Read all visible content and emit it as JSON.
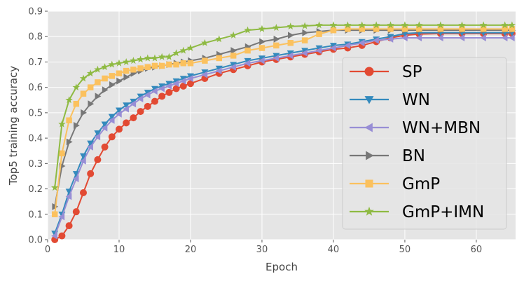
{
  "chart_data": {
    "type": "line",
    "xlabel": "Epoch",
    "ylabel": "Top5 training accuracy",
    "xlim": [
      0,
      65.5
    ],
    "ylim": [
      0,
      0.9
    ],
    "xticks": [
      0,
      10,
      20,
      30,
      40,
      50,
      60
    ],
    "yticks": [
      0.0,
      0.1,
      0.2,
      0.3,
      0.4,
      0.5,
      0.6,
      0.7,
      0.8,
      0.9
    ],
    "grid": true,
    "legend_position": "center-right",
    "series": [
      {
        "name": "SP",
        "color": "#E24A33",
        "marker": "circle",
        "x": [
          1,
          2,
          3,
          4,
          5,
          6,
          7,
          8,
          9,
          10,
          11,
          12,
          13,
          14,
          15,
          16,
          17,
          18,
          19,
          20,
          22,
          24,
          26,
          28,
          30,
          32,
          34,
          36,
          38,
          40,
          42,
          44,
          46,
          48,
          50,
          52,
          55,
          58,
          61,
          64,
          65
        ],
        "y": [
          0.0,
          0.015,
          0.055,
          0.11,
          0.185,
          0.26,
          0.315,
          0.365,
          0.405,
          0.435,
          0.46,
          0.48,
          0.505,
          0.525,
          0.545,
          0.565,
          0.58,
          0.595,
          0.605,
          0.615,
          0.635,
          0.655,
          0.67,
          0.685,
          0.7,
          0.71,
          0.72,
          0.73,
          0.74,
          0.75,
          0.755,
          0.765,
          0.78,
          0.795,
          0.805,
          0.81,
          0.812,
          0.812,
          0.812,
          0.812,
          0.812
        ]
      },
      {
        "name": "WN",
        "color": "#348ABD",
        "marker": "triangle-down",
        "x": [
          1,
          2,
          3,
          4,
          5,
          6,
          7,
          8,
          9,
          10,
          11,
          12,
          13,
          14,
          15,
          16,
          17,
          18,
          19,
          20,
          22,
          24,
          26,
          28,
          30,
          32,
          34,
          36,
          38,
          40,
          42,
          44,
          46,
          48,
          50,
          52,
          55,
          58,
          61,
          64,
          65
        ],
        "y": [
          0.025,
          0.1,
          0.19,
          0.26,
          0.33,
          0.38,
          0.42,
          0.455,
          0.485,
          0.51,
          0.53,
          0.545,
          0.565,
          0.58,
          0.595,
          0.605,
          0.615,
          0.625,
          0.635,
          0.645,
          0.66,
          0.675,
          0.69,
          0.705,
          0.715,
          0.725,
          0.735,
          0.745,
          0.755,
          0.765,
          0.77,
          0.78,
          0.79,
          0.8,
          0.812,
          0.815,
          0.815,
          0.815,
          0.815,
          0.815,
          0.815
        ]
      },
      {
        "name": "WN+MBN",
        "color": "#988ED5",
        "marker": "triangle-left",
        "x": [
          1,
          2,
          3,
          4,
          5,
          6,
          7,
          8,
          9,
          10,
          11,
          12,
          13,
          14,
          15,
          16,
          17,
          18,
          19,
          20,
          22,
          24,
          26,
          28,
          30,
          32,
          34,
          36,
          38,
          40,
          42,
          44,
          46,
          48,
          50,
          52,
          55,
          58,
          61,
          64,
          65
        ],
        "y": [
          0.015,
          0.09,
          0.17,
          0.24,
          0.31,
          0.365,
          0.405,
          0.44,
          0.47,
          0.495,
          0.515,
          0.535,
          0.555,
          0.57,
          0.585,
          0.595,
          0.605,
          0.615,
          0.625,
          0.635,
          0.65,
          0.665,
          0.68,
          0.695,
          0.705,
          0.715,
          0.725,
          0.735,
          0.745,
          0.755,
          0.765,
          0.775,
          0.785,
          0.79,
          0.795,
          0.795,
          0.795,
          0.795,
          0.795,
          0.795,
          0.795
        ]
      },
      {
        "name": "BN",
        "color": "#777777",
        "marker": "triangle-right",
        "x": [
          1,
          2,
          3,
          4,
          5,
          6,
          7,
          8,
          9,
          10,
          11,
          12,
          13,
          14,
          15,
          16,
          17,
          18,
          19,
          20,
          22,
          24,
          26,
          28,
          30,
          32,
          34,
          36,
          38,
          40,
          42,
          44,
          46,
          48,
          50,
          52,
          55,
          58,
          61,
          64,
          65
        ],
        "y": [
          0.13,
          0.29,
          0.385,
          0.45,
          0.5,
          0.535,
          0.565,
          0.59,
          0.61,
          0.625,
          0.64,
          0.655,
          0.665,
          0.675,
          0.68,
          0.685,
          0.69,
          0.695,
          0.7,
          0.705,
          0.715,
          0.73,
          0.745,
          0.76,
          0.78,
          0.79,
          0.805,
          0.815,
          0.82,
          0.825,
          0.825,
          0.825,
          0.825,
          0.825,
          0.825,
          0.825,
          0.825,
          0.825,
          0.825,
          0.825,
          0.825
        ]
      },
      {
        "name": "GmP",
        "color": "#FBC15E",
        "marker": "square",
        "x": [
          1,
          2,
          3,
          4,
          5,
          6,
          7,
          8,
          9,
          10,
          11,
          12,
          13,
          14,
          15,
          16,
          17,
          18,
          19,
          20,
          22,
          24,
          26,
          28,
          30,
          32,
          34,
          36,
          38,
          40,
          42,
          44,
          46,
          48,
          50,
          52,
          55,
          58,
          61,
          64,
          65
        ],
        "y": [
          0.1,
          0.34,
          0.47,
          0.535,
          0.575,
          0.6,
          0.62,
          0.635,
          0.645,
          0.655,
          0.665,
          0.67,
          0.675,
          0.68,
          0.685,
          0.685,
          0.69,
          0.69,
          0.695,
          0.695,
          0.705,
          0.715,
          0.725,
          0.745,
          0.755,
          0.765,
          0.775,
          0.785,
          0.81,
          0.825,
          0.83,
          0.83,
          0.83,
          0.83,
          0.83,
          0.83,
          0.83,
          0.83,
          0.83,
          0.83,
          0.83
        ]
      },
      {
        "name": "GmP+IMN",
        "color": "#8EBA42",
        "marker": "star",
        "x": [
          1,
          2,
          3,
          4,
          5,
          6,
          7,
          8,
          9,
          10,
          11,
          12,
          13,
          14,
          15,
          16,
          17,
          18,
          19,
          20,
          22,
          24,
          26,
          28,
          30,
          32,
          34,
          36,
          38,
          40,
          42,
          44,
          46,
          48,
          50,
          52,
          55,
          58,
          61,
          64,
          65
        ],
        "y": [
          0.205,
          0.455,
          0.55,
          0.6,
          0.635,
          0.655,
          0.67,
          0.68,
          0.69,
          0.695,
          0.7,
          0.705,
          0.71,
          0.715,
          0.715,
          0.72,
          0.72,
          0.735,
          0.745,
          0.755,
          0.775,
          0.79,
          0.805,
          0.825,
          0.83,
          0.835,
          0.84,
          0.842,
          0.845,
          0.845,
          0.845,
          0.845,
          0.845,
          0.845,
          0.845,
          0.845,
          0.845,
          0.845,
          0.845,
          0.845,
          0.845
        ]
      }
    ]
  }
}
